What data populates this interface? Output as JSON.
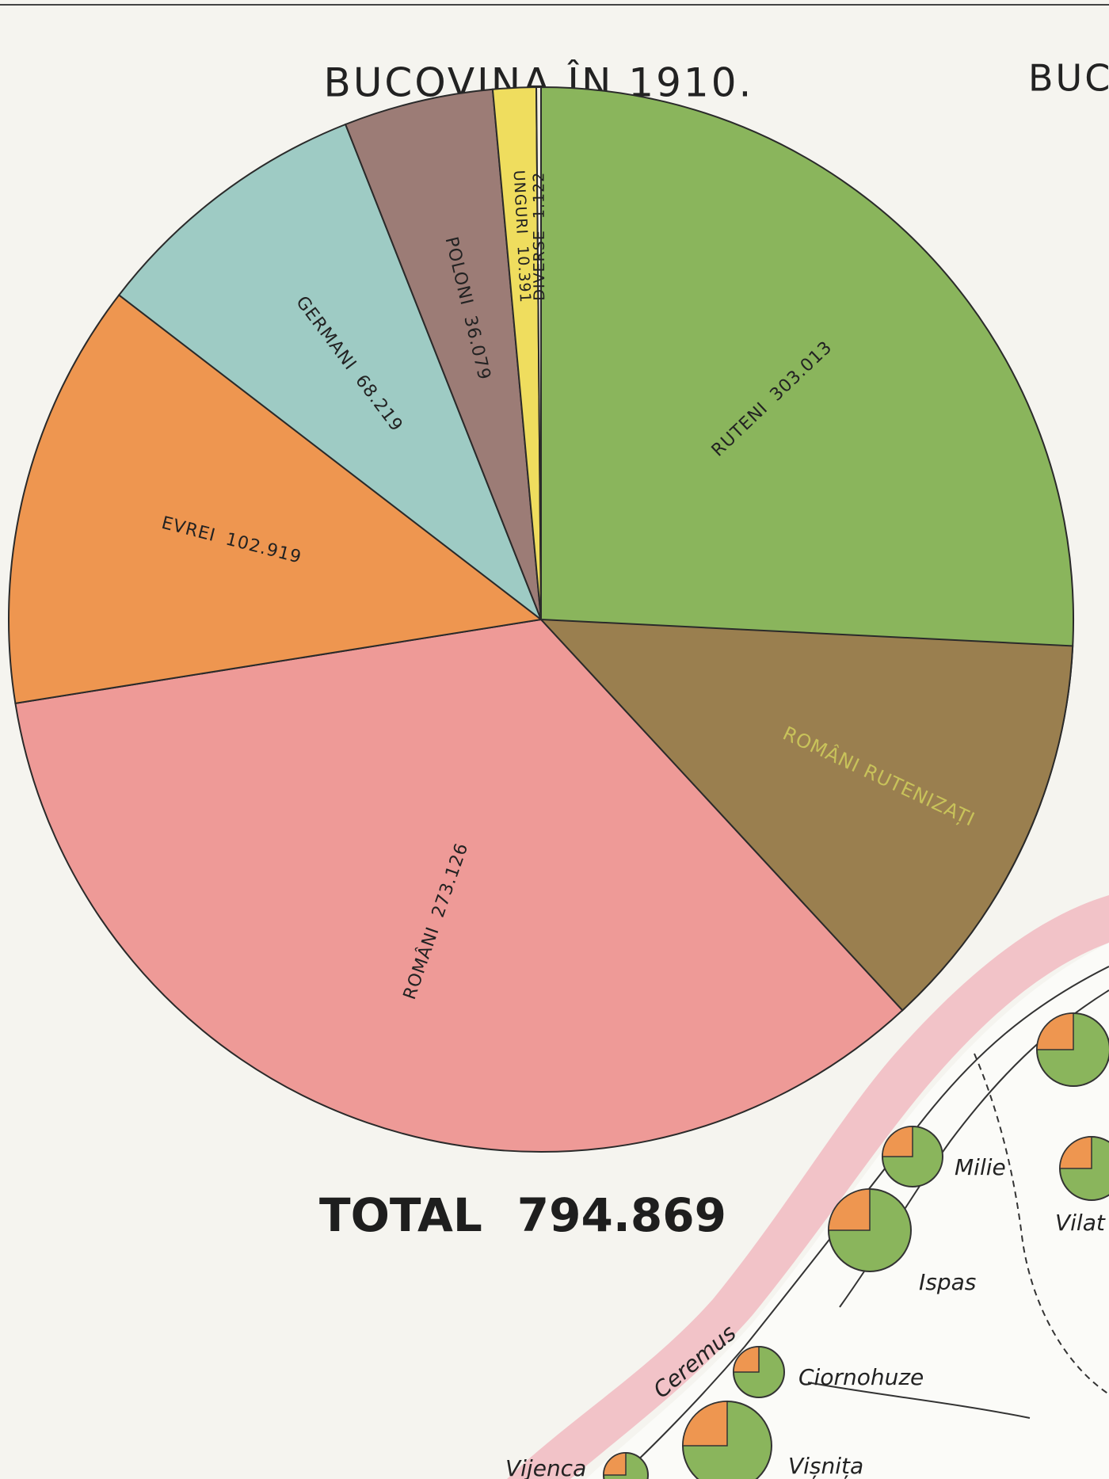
{
  "chart_data": {
    "type": "pie",
    "title": "BUCOVINA ÎN 1910.",
    "side_title": "BUC",
    "categories": [
      "RUTENI",
      "ROMÂNI",
      "EVREI",
      "GERMANI",
      "POLONI",
      "UNGURI",
      "DIVERSE"
    ],
    "values": [
      303013,
      273126,
      102919,
      68219,
      36079,
      10391,
      1122
    ],
    "value_labels": [
      "303.013",
      "273.126",
      "102.919",
      "68.219",
      "36.079",
      "10.391",
      "1.122"
    ],
    "colors": [
      "#8ab55c",
      "#ee9a97",
      "#ee9650",
      "#9ecbc4",
      "#9c7c76",
      "#efdd5e",
      "#f3f0e4"
    ],
    "overlay": {
      "name": "ROMÂNI RUTENIZAȚI",
      "value": 98000,
      "color": "#9a7f4f",
      "within": "RUTENI"
    },
    "total": {
      "label": "TOTAL",
      "value": 794869,
      "value_label": "794.869"
    },
    "map_labels": [
      "Milie",
      "Vilat",
      "Ispas",
      "Ciornohuze",
      "Ceremus",
      "Vijenca",
      "Vișnița"
    ]
  }
}
